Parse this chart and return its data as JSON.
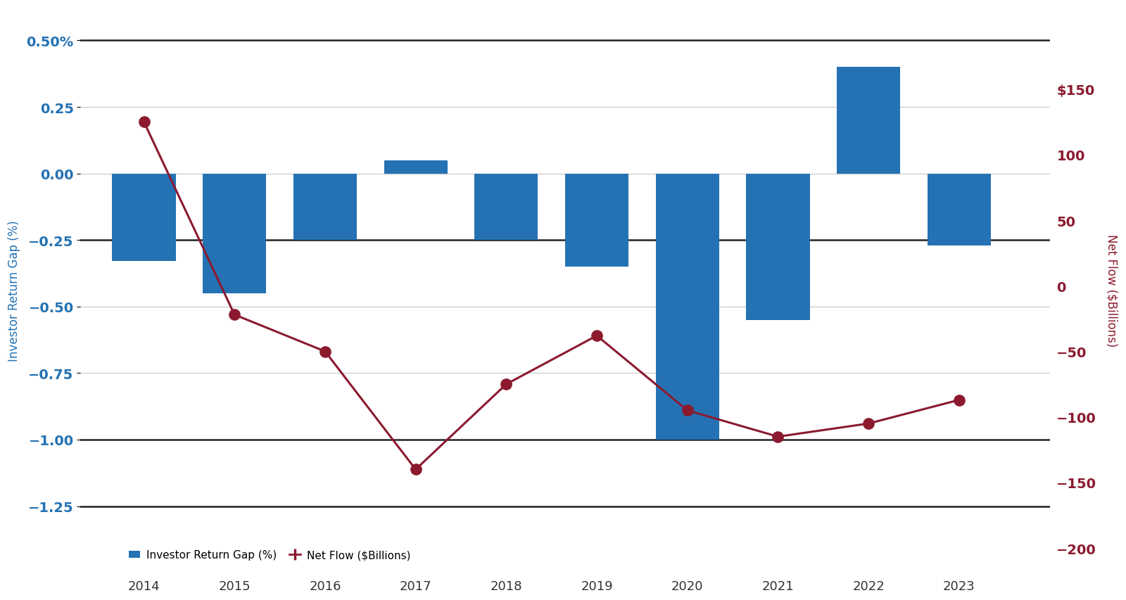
{
  "years": [
    2014,
    2015,
    2016,
    2017,
    2018,
    2019,
    2020,
    2021,
    2022,
    2023
  ],
  "bar_values": [
    -0.33,
    -0.45,
    -0.25,
    0.05,
    -0.25,
    -0.35,
    -1.0,
    -0.55,
    0.4,
    -0.27
  ],
  "line_values": [
    125,
    -22,
    -50,
    -140,
    -75,
    -38,
    -95,
    -115,
    -105,
    -87
  ],
  "bar_color": "#2472B3",
  "line_color": "#8B1A2F",
  "marker_color": "#8B1A2F",
  "left_ylim": [
    -1.5,
    0.625
  ],
  "right_ylim": [
    -218.75,
    212.5
  ],
  "left_yticks": [
    0.5,
    0.25,
    0.0,
    -0.25,
    -0.5,
    -0.75,
    -1.0,
    -1.25
  ],
  "right_yticks": [
    150,
    100,
    50,
    0,
    -50,
    -100,
    -150,
    -200
  ],
  "left_ytick_labels": [
    "0.50%",
    "0.25",
    "0.00",
    "−0.25",
    "−0.50",
    "−0.75",
    "−1.00",
    "−1.25"
  ],
  "right_ytick_labels": [
    "$150",
    "100",
    "50",
    "0",
    "−50",
    "−100",
    "−150",
    "−200"
  ],
  "left_ylabel": "Investor Return Gap (%)",
  "right_ylabel": "Net Flow ($Billions)",
  "left_label_color": "#2472B3",
  "right_label_color": "#8B1A2F",
  "grid_color": "#CCCCCC",
  "background_color": "#FFFFFF",
  "bar_width": 0.7,
  "left_legend_label": "Investor Return Gap (%)",
  "right_legend_label": "Net Flow ($Billions)",
  "black_hlines": [
    0.5,
    -0.25,
    -1.0
  ],
  "gray_hlines": [
    0.25,
    0.0,
    -0.5,
    -0.75,
    -1.25
  ],
  "bottom_hline": -1.25
}
